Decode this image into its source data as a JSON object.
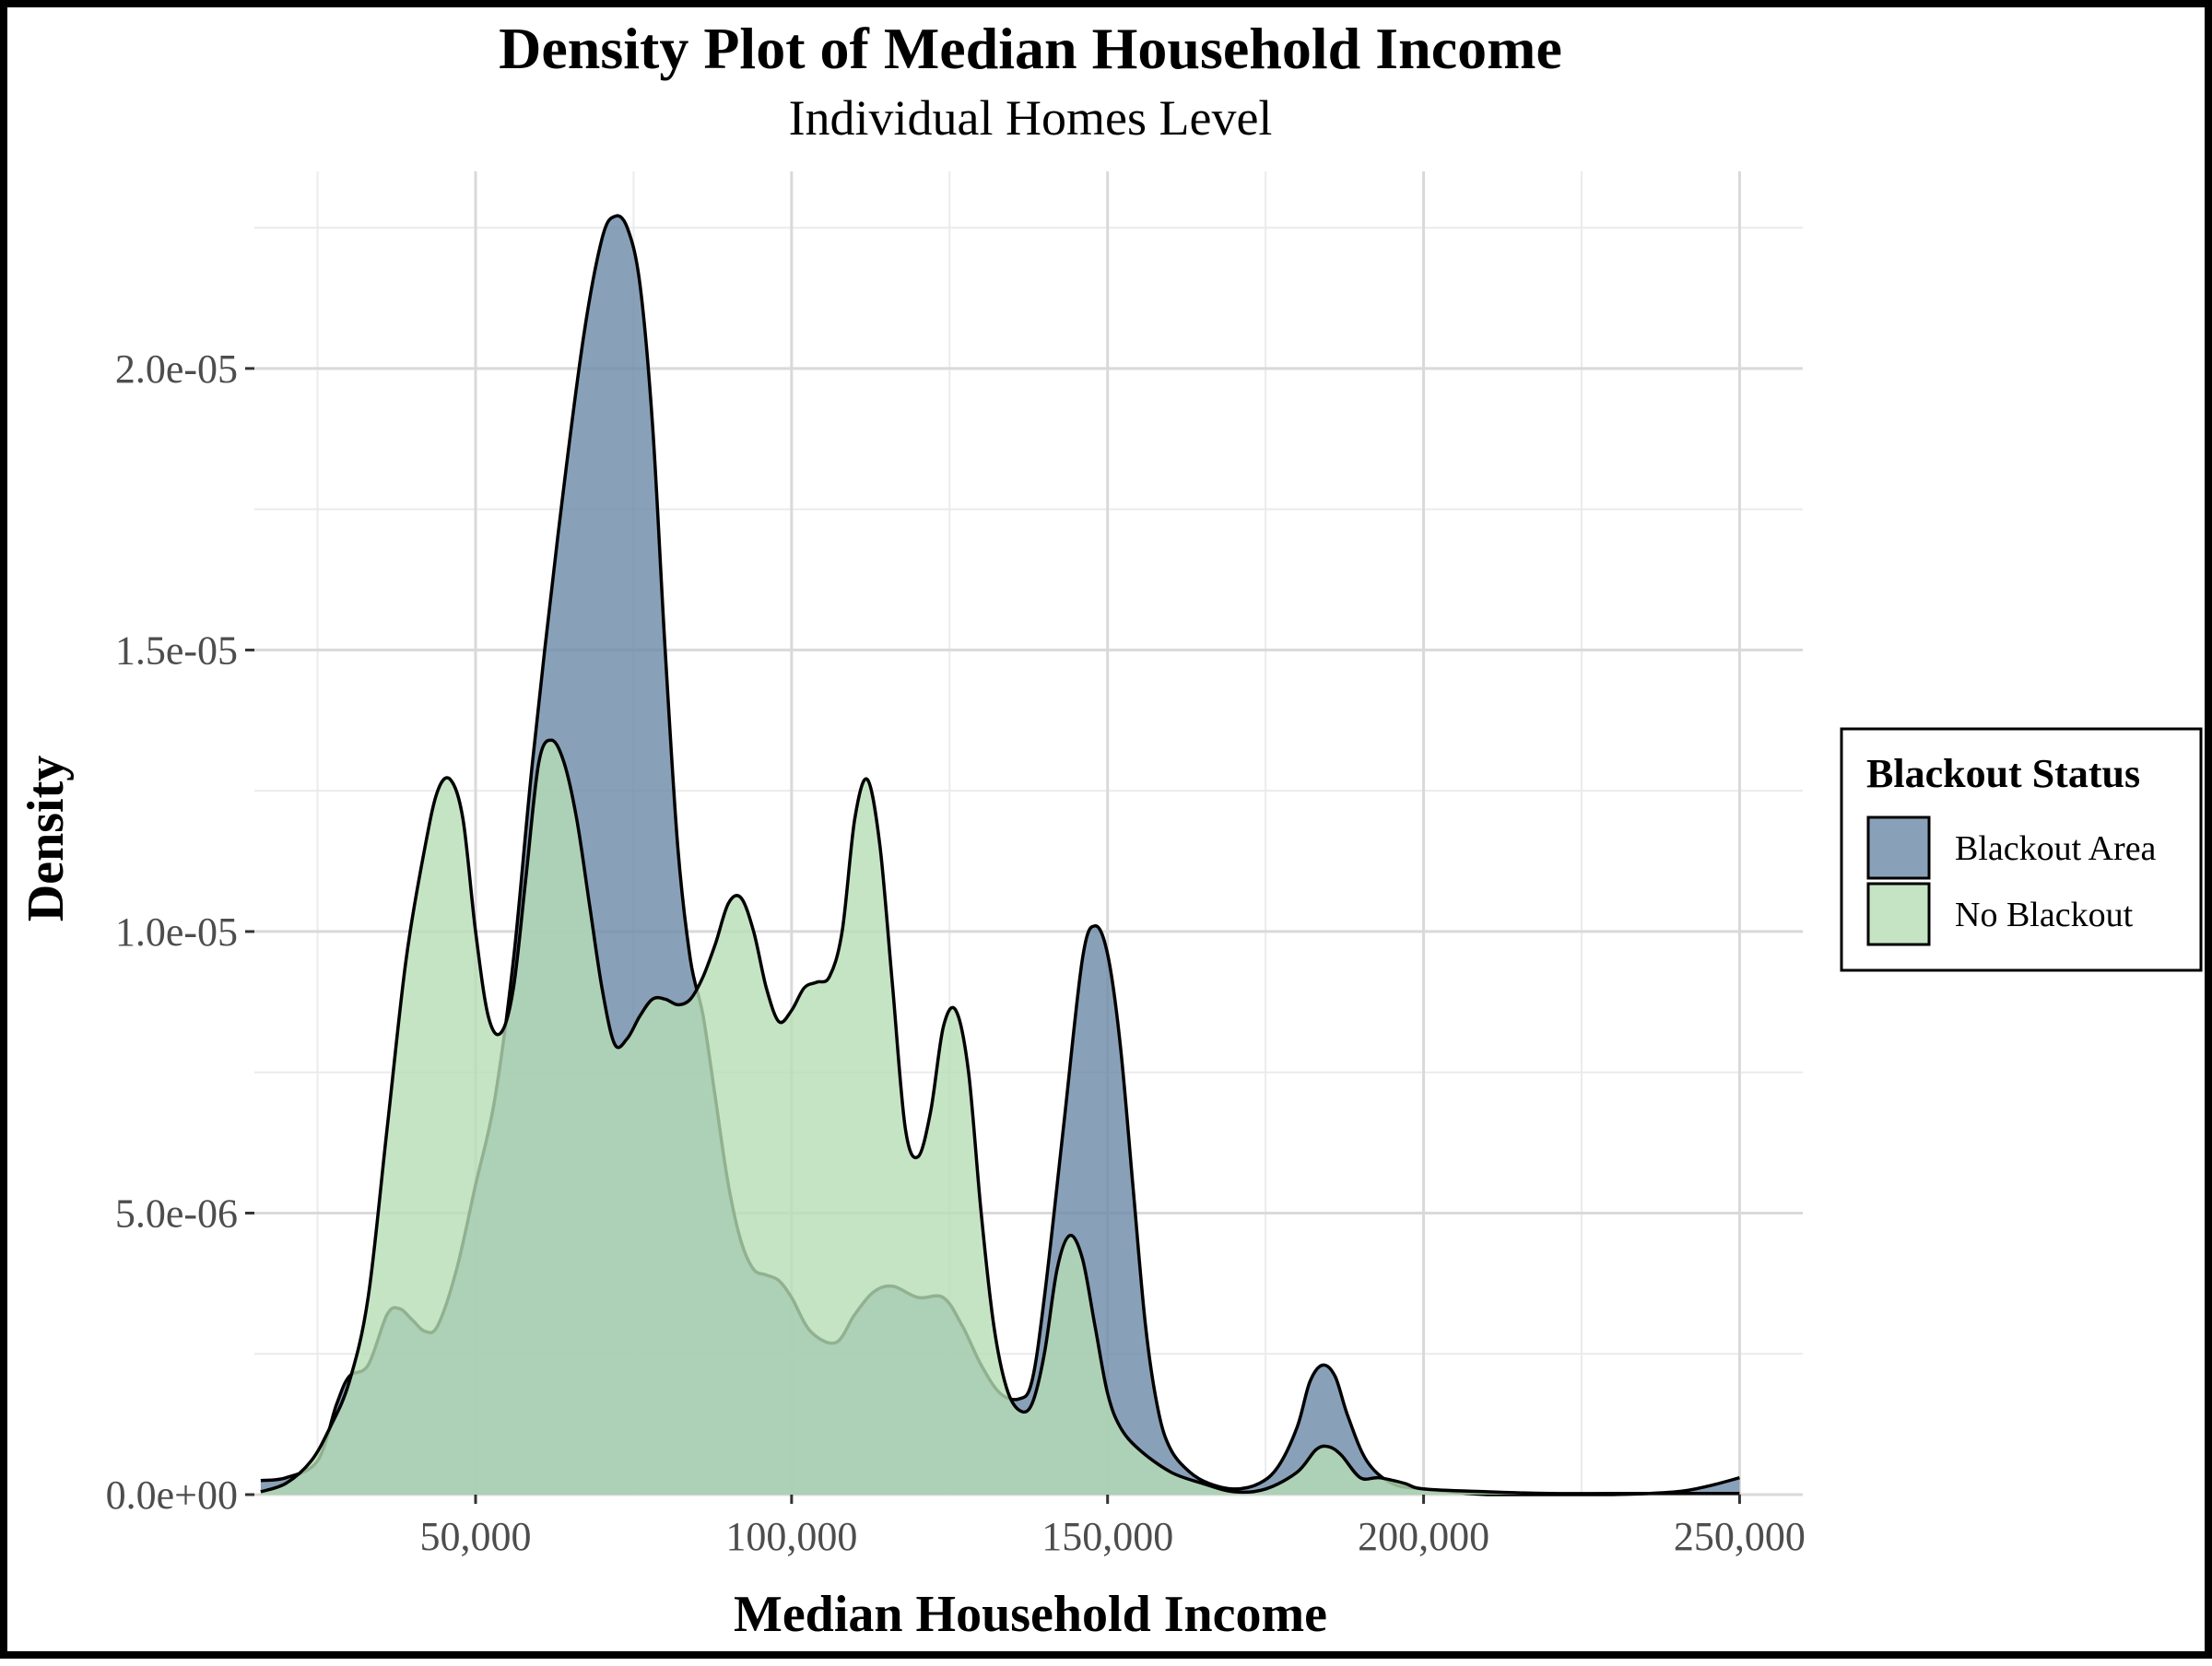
{
  "chart_data": {
    "type": "area",
    "title": "Density Plot of Median Household Income",
    "subtitle": "Individual Homes Level",
    "xlabel": "Median Household Income",
    "ylabel": "Density",
    "xlim": [
      15000,
      260000
    ],
    "ylim": [
      0,
      2.35e-05
    ],
    "x_ticks": [
      {
        "value": 50000,
        "label": "50,000"
      },
      {
        "value": 100000,
        "label": "100,000"
      },
      {
        "value": 150000,
        "label": "150,000"
      },
      {
        "value": 200000,
        "label": "200,000"
      },
      {
        "value": 250000,
        "label": "250,000"
      }
    ],
    "y_ticks": [
      {
        "value": 0,
        "label": "0.0e+00"
      },
      {
        "value": 5e-06,
        "label": "5.0e-06"
      },
      {
        "value": 1e-05,
        "label": "1.0e-05"
      },
      {
        "value": 1.5e-05,
        "label": "1.5e-05"
      },
      {
        "value": 2e-05,
        "label": "2.0e-05"
      }
    ],
    "x_minor": [
      25000,
      75000,
      125000,
      175000,
      225000
    ],
    "y_minor": [
      2.5e-06,
      7.5e-06,
      1.25e-05,
      1.75e-05,
      2.25e-05
    ],
    "grid": true,
    "legend": {
      "title": "Blackout Status",
      "position": "right"
    },
    "series": [
      {
        "name": "Blackout Area",
        "color": "#6b8aa6",
        "points": [
          [
            16000,
            2.5e-07
          ],
          [
            20000,
            3e-07
          ],
          [
            25000,
            6e-07
          ],
          [
            28000,
            1.6e-06
          ],
          [
            30000,
            2.1e-06
          ],
          [
            33000,
            2.3e-06
          ],
          [
            36000,
            3.2e-06
          ],
          [
            38000,
            3.3e-06
          ],
          [
            40000,
            3.1e-06
          ],
          [
            42000,
            2.9e-06
          ],
          [
            44000,
            3e-06
          ],
          [
            47000,
            4e-06
          ],
          [
            50000,
            5.5e-06
          ],
          [
            53000,
            7e-06
          ],
          [
            56000,
            9.5e-06
          ],
          [
            59000,
            1.3e-05
          ],
          [
            63000,
            1.7e-05
          ],
          [
            67000,
            2.05e-05
          ],
          [
            70000,
            2.23e-05
          ],
          [
            72000,
            2.27e-05
          ],
          [
            74000,
            2.25e-05
          ],
          [
            76000,
            2.15e-05
          ],
          [
            78000,
            1.9e-05
          ],
          [
            80000,
            1.5e-05
          ],
          [
            82000,
            1.15e-05
          ],
          [
            84000,
            9.5e-06
          ],
          [
            86000,
            8.5e-06
          ],
          [
            88000,
            7e-06
          ],
          [
            90000,
            5.5e-06
          ],
          [
            92000,
            4.5e-06
          ],
          [
            94000,
            4e-06
          ],
          [
            96000,
            3.9e-06
          ],
          [
            98000,
            3.8e-06
          ],
          [
            100000,
            3.5e-06
          ],
          [
            103000,
            2.9e-06
          ],
          [
            107000,
            2.7e-06
          ],
          [
            110000,
            3.2e-06
          ],
          [
            113000,
            3.6e-06
          ],
          [
            116000,
            3.7e-06
          ],
          [
            120000,
            3.5e-06
          ],
          [
            124000,
            3.5e-06
          ],
          [
            127000,
            3e-06
          ],
          [
            130000,
            2.3e-06
          ],
          [
            133000,
            1.8e-06
          ],
          [
            136000,
            1.7e-06
          ],
          [
            138000,
            2e-06
          ],
          [
            140000,
            3.5e-06
          ],
          [
            143000,
            6.5e-06
          ],
          [
            146000,
            9.5e-06
          ],
          [
            148000,
            1.01e-05
          ],
          [
            150000,
            9.6e-06
          ],
          [
            152000,
            8e-06
          ],
          [
            154000,
            5.5e-06
          ],
          [
            156000,
            3e-06
          ],
          [
            158000,
            1.5e-06
          ],
          [
            160000,
            8e-07
          ],
          [
            163000,
            4e-07
          ],
          [
            166000,
            2e-07
          ],
          [
            170000,
            1e-07
          ],
          [
            174000,
            2e-07
          ],
          [
            177000,
            5e-07
          ],
          [
            180000,
            1.2e-06
          ],
          [
            182000,
            2e-06
          ],
          [
            184000,
            2.3e-06
          ],
          [
            186000,
            2.1e-06
          ],
          [
            188000,
            1.4e-06
          ],
          [
            191000,
            6e-07
          ],
          [
            195000,
            2e-07
          ],
          [
            200000,
            1e-07
          ],
          [
            210000,
            0.0
          ],
          [
            220000,
            0.0
          ],
          [
            230000,
            0.0
          ],
          [
            240000,
            5e-08
          ],
          [
            245000,
            1.5e-07
          ],
          [
            250000,
            3e-07
          ]
        ]
      },
      {
        "name": "No Blackout",
        "color": "#b7ddb5",
        "points": [
          [
            16000,
            5e-08
          ],
          [
            20000,
            2e-07
          ],
          [
            24000,
            6e-07
          ],
          [
            27000,
            1.2e-06
          ],
          [
            30000,
            2e-06
          ],
          [
            33000,
            3.5e-06
          ],
          [
            36000,
            6.5e-06
          ],
          [
            39000,
            9.5e-06
          ],
          [
            42000,
            1.15e-05
          ],
          [
            44000,
            1.25e-05
          ],
          [
            46000,
            1.27e-05
          ],
          [
            48000,
            1.2e-05
          ],
          [
            50000,
            1e-05
          ],
          [
            52000,
            8.5e-06
          ],
          [
            54000,
            8.2e-06
          ],
          [
            56000,
            9e-06
          ],
          [
            58000,
            1.1e-05
          ],
          [
            60000,
            1.3e-05
          ],
          [
            62000,
            1.34e-05
          ],
          [
            64000,
            1.3e-05
          ],
          [
            66000,
            1.2e-05
          ],
          [
            68000,
            1.05e-05
          ],
          [
            70000,
            9e-06
          ],
          [
            72000,
            8e-06
          ],
          [
            74000,
            8.1e-06
          ],
          [
            76000,
            8.5e-06
          ],
          [
            78000,
            8.8e-06
          ],
          [
            80000,
            8.8e-06
          ],
          [
            82000,
            8.7e-06
          ],
          [
            84000,
            8.8e-06
          ],
          [
            86000,
            9.2e-06
          ],
          [
            88000,
            9.8e-06
          ],
          [
            90000,
            1.05e-05
          ],
          [
            92000,
            1.06e-05
          ],
          [
            94000,
            1e-05
          ],
          [
            96000,
            9e-06
          ],
          [
            98000,
            8.4e-06
          ],
          [
            100000,
            8.6e-06
          ],
          [
            102000,
            9e-06
          ],
          [
            104000,
            9.1e-06
          ],
          [
            106000,
            9.2e-06
          ],
          [
            108000,
            1e-05
          ],
          [
            110000,
            1.2e-05
          ],
          [
            112000,
            1.27e-05
          ],
          [
            114000,
            1.15e-05
          ],
          [
            116000,
            9e-06
          ],
          [
            118000,
            6.5e-06
          ],
          [
            120000,
            6e-06
          ],
          [
            122000,
            6.8e-06
          ],
          [
            124000,
            8.3e-06
          ],
          [
            126000,
            8.6e-06
          ],
          [
            128000,
            7.5e-06
          ],
          [
            130000,
            5e-06
          ],
          [
            132000,
            3e-06
          ],
          [
            134000,
            1.9e-06
          ],
          [
            136000,
            1.5e-06
          ],
          [
            138000,
            1.6e-06
          ],
          [
            140000,
            2.5e-06
          ],
          [
            142000,
            4e-06
          ],
          [
            144000,
            4.6e-06
          ],
          [
            146000,
            4.2e-06
          ],
          [
            148000,
            3e-06
          ],
          [
            150000,
            1.8e-06
          ],
          [
            152000,
            1.2e-06
          ],
          [
            155000,
            8e-07
          ],
          [
            160000,
            4e-07
          ],
          [
            165000,
            2e-07
          ],
          [
            170000,
            5e-08
          ],
          [
            175000,
            1e-07
          ],
          [
            180000,
            4e-07
          ],
          [
            183000,
            8e-07
          ],
          [
            185000,
            8.5e-07
          ],
          [
            187000,
            7e-07
          ],
          [
            190000,
            3e-07
          ],
          [
            193000,
            3e-07
          ],
          [
            197000,
            2e-07
          ],
          [
            200000,
            1e-07
          ],
          [
            210000,
            5e-08
          ],
          [
            220000,
            2e-08
          ],
          [
            230000,
            2e-08
          ],
          [
            240000,
            2e-08
          ],
          [
            250000,
            2e-08
          ]
        ]
      }
    ]
  }
}
